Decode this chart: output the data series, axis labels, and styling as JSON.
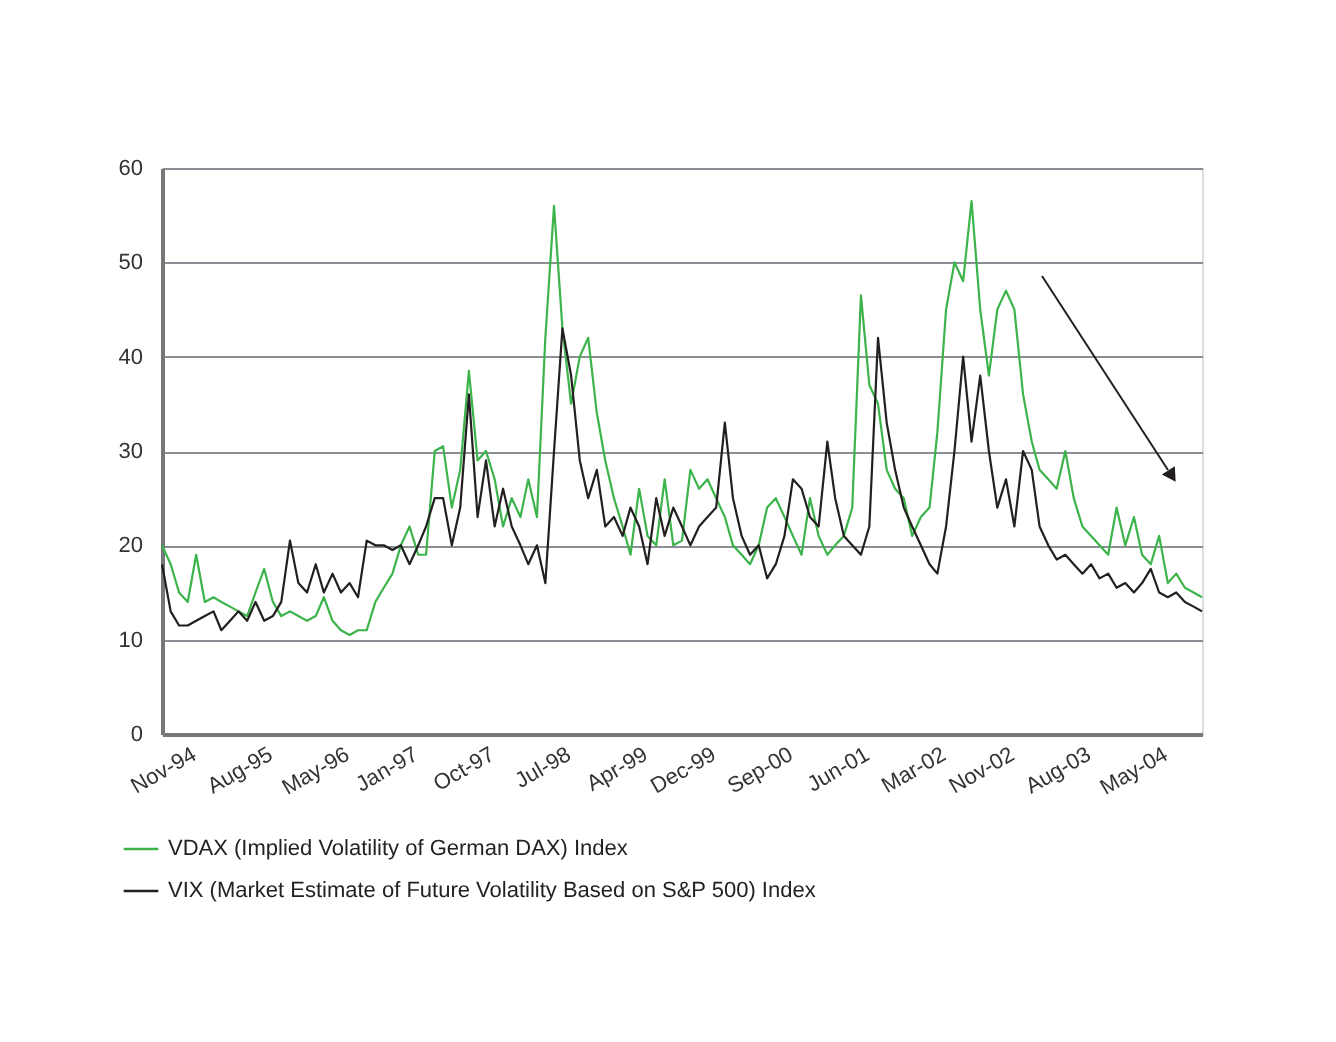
{
  "chart_data": {
    "type": "line",
    "xlim": [
      "1994-08-01",
      "2004-10-01"
    ],
    "xticks": [
      {
        "value": "1994-11-01",
        "label": "Nov-94"
      },
      {
        "value": "1995-08-01",
        "label": "Aug-95"
      },
      {
        "value": "1996-05-01",
        "label": "May-96"
      },
      {
        "value": "1997-01-01",
        "label": "Jan-97"
      },
      {
        "value": "1997-10-01",
        "label": "Oct-97"
      },
      {
        "value": "1998-07-01",
        "label": "Jul-98"
      },
      {
        "value": "1999-04-01",
        "label": "Apr-99"
      },
      {
        "value": "1999-12-01",
        "label": "Dec-99"
      },
      {
        "value": "2000-09-01",
        "label": "Sep-00"
      },
      {
        "value": "2001-06-01",
        "label": "Jun-01"
      },
      {
        "value": "2002-03-01",
        "label": "Mar-02"
      },
      {
        "value": "2002-11-01",
        "label": "Nov-02"
      },
      {
        "value": "2003-08-01",
        "label": "Aug-03"
      },
      {
        "value": "2004-05-01",
        "label": "May-04"
      }
    ],
    "x": [
      "1994-08",
      "1994-09",
      "1994-10",
      "1994-11",
      "1994-12",
      "1995-01",
      "1995-02",
      "1995-03",
      "1995-04",
      "1995-05",
      "1995-06",
      "1995-07",
      "1995-08",
      "1995-09",
      "1995-10",
      "1995-11",
      "1995-12",
      "1996-01",
      "1996-02",
      "1996-03",
      "1996-04",
      "1996-05",
      "1996-06",
      "1996-07",
      "1996-08",
      "1996-09",
      "1996-10",
      "1996-11",
      "1996-12",
      "1997-01",
      "1997-02",
      "1997-03",
      "1997-04",
      "1997-05",
      "1997-06",
      "1997-07",
      "1997-08",
      "1997-09",
      "1997-10",
      "1997-11",
      "1997-12",
      "1998-01",
      "1998-02",
      "1998-03",
      "1998-04",
      "1998-05",
      "1998-06",
      "1998-07",
      "1998-08",
      "1998-09",
      "1998-10",
      "1998-11",
      "1998-12",
      "1999-01",
      "1999-02",
      "1999-03",
      "1999-04",
      "1999-05",
      "1999-06",
      "1999-07",
      "1999-08",
      "1999-09",
      "1999-10",
      "1999-11",
      "1999-12",
      "2000-01",
      "2000-02",
      "2000-03",
      "2000-04",
      "2000-05",
      "2000-06",
      "2000-07",
      "2000-08",
      "2000-09",
      "2000-10",
      "2000-11",
      "2000-12",
      "2001-01",
      "2001-02",
      "2001-03",
      "2001-04",
      "2001-05",
      "2001-06",
      "2001-07",
      "2001-08",
      "2001-09",
      "2001-10",
      "2001-11",
      "2001-12",
      "2002-01",
      "2002-02",
      "2002-03",
      "2002-04",
      "2002-05",
      "2002-06",
      "2002-07",
      "2002-08",
      "2002-09",
      "2002-10",
      "2002-11",
      "2002-12",
      "2003-01",
      "2003-02",
      "2003-03",
      "2003-04",
      "2003-05",
      "2003-06",
      "2003-07",
      "2003-08",
      "2003-09",
      "2003-10",
      "2003-11",
      "2003-12",
      "2004-01",
      "2004-02",
      "2004-03",
      "2004-04",
      "2004-05",
      "2004-06",
      "2004-07",
      "2004-08",
      "2004-09",
      "2004-10"
    ],
    "ylim": [
      0,
      60
    ],
    "yticks": [
      0,
      10,
      20,
      30,
      40,
      50,
      60
    ],
    "grid": "y",
    "legend": "bottom left",
    "marker": "none",
    "line_style": "solid",
    "series": [
      {
        "name": "VDAX (Implied Volatility of German DAX) Index",
        "color": "#3cb44b",
        "values": [
          20,
          18,
          15,
          14,
          19,
          14,
          14.5,
          14,
          13.5,
          13,
          12.5,
          15,
          17.5,
          14,
          12.5,
          13,
          12.5,
          12,
          12.5,
          14.5,
          12,
          11,
          10.5,
          11,
          11,
          14,
          15.5,
          17,
          20,
          22,
          19,
          19,
          30,
          30.5,
          24,
          28,
          38.5,
          29,
          30,
          27,
          22,
          25,
          23,
          27,
          23,
          42,
          56,
          43,
          35,
          40,
          42,
          34,
          29,
          25,
          22,
          19,
          26,
          21,
          20,
          27,
          20,
          20.5,
          28,
          26,
          27,
          25,
          23,
          20,
          19,
          18,
          20,
          24,
          25,
          23,
          21,
          19,
          25,
          21,
          19,
          20,
          21,
          24,
          46.5,
          37,
          35,
          28,
          26,
          25,
          21,
          23,
          24,
          32,
          45,
          50,
          48,
          56.5,
          45,
          38,
          45,
          47,
          45,
          36,
          31,
          28,
          27,
          26,
          30,
          25,
          22,
          21,
          20,
          19,
          24,
          20,
          23,
          19,
          18,
          21,
          16,
          17,
          15.5,
          15,
          14.5
        ]
      },
      {
        "name": "VIX (Market Estimate of Future Volatility Based on S&P 500) Index",
        "color": "#231f20",
        "values": [
          18,
          13,
          11.5,
          11.5,
          12,
          12.5,
          13,
          11,
          12,
          13,
          12,
          14,
          12,
          12.5,
          14,
          20.5,
          16,
          15,
          18,
          15,
          17,
          15,
          16,
          14.5,
          20.5,
          20,
          20,
          19.5,
          20,
          18,
          20,
          22,
          25,
          25,
          20,
          24,
          36,
          23,
          29,
          22,
          26,
          22,
          20,
          18,
          20,
          16,
          30,
          43,
          38,
          29,
          25,
          28,
          22,
          23,
          21,
          24,
          22,
          18,
          25,
          21,
          24,
          22,
          20,
          22,
          23,
          24,
          33,
          25,
          21,
          19,
          20,
          16.5,
          18,
          21,
          27,
          26,
          23,
          22,
          31,
          25,
          21,
          20,
          19,
          22,
          42,
          33,
          28,
          24,
          22,
          20,
          18,
          17,
          22,
          30,
          40,
          31,
          38,
          30,
          24,
          27,
          22,
          30,
          28,
          22,
          20,
          18.5,
          19,
          18,
          17,
          18,
          16.5,
          17,
          15.5,
          16,
          15,
          16,
          17.5,
          15,
          14.5,
          15,
          14,
          13.5,
          13
        ]
      }
    ]
  }
}
